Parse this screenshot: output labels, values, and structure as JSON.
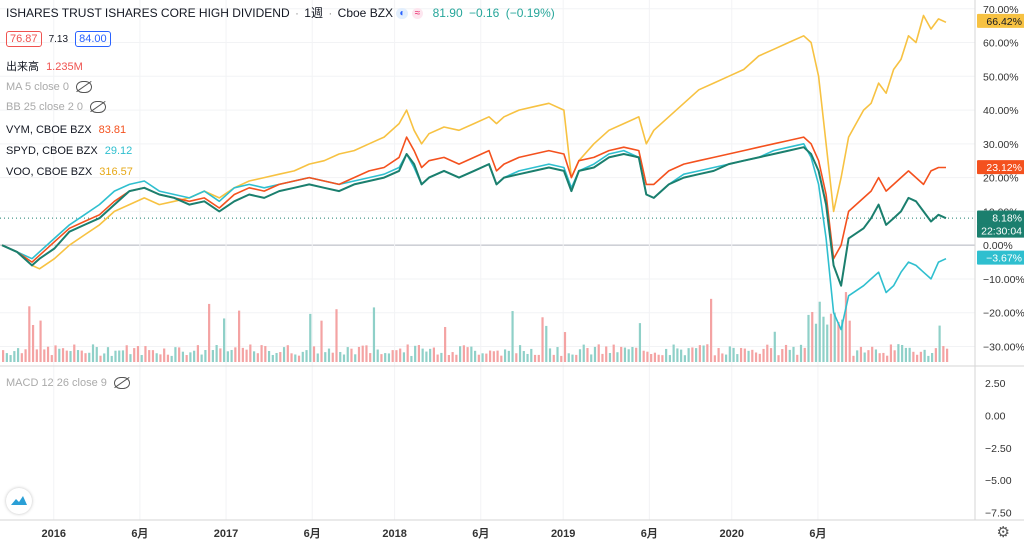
{
  "header": {
    "title": "ISHARES TRUST ISHARES CORE HIGH DIVIDEND",
    "sep": "·",
    "interval": "1週",
    "exchange": "Cboe BZX",
    "price": "81.90",
    "change": "−0.16",
    "change_pct": "(−0.19%)",
    "bid": "76.87",
    "spread": "7.13",
    "ask": "84.00"
  },
  "indicators": {
    "volume_label": "出来高",
    "volume_value": "1.235M",
    "ma": "MA 5 close 0",
    "bb": "BB 25 close 2 0",
    "macd": "MACD 12 26 close 9"
  },
  "series_legend": [
    {
      "label": "VYM, CBOE BZX",
      "value": "83.81"
    },
    {
      "label": "SPYD, CBOE BZX",
      "value": "29.12"
    },
    {
      "label": "VOO, CBOE BZX",
      "value": "316.57"
    }
  ],
  "badges": {
    "voo": "66.42%",
    "vym": "23.12%",
    "main": "8.18%",
    "time": "22:30:04",
    "spyd": "−3.67%"
  },
  "chart_data": {
    "type": "line",
    "x_ticks": [
      "2016",
      "6月",
      "2017",
      "6月",
      "2018",
      "6月",
      "2019",
      "6月",
      "2020",
      "6月"
    ],
    "y_ticks": [
      "70.00%",
      "60.00%",
      "50.00%",
      "40.00%",
      "30.00%",
      "20.00%",
      "10.00%",
      "0.00%",
      "−10.00%",
      "−20.00%",
      "−30.00%"
    ],
    "ylim": [
      -34,
      72
    ],
    "macd_ticks": [
      "2.50",
      "0.00",
      "−2.50",
      "−5.00",
      "−7.50"
    ],
    "colors": {
      "main": "#1b7f6e",
      "vym": "#f4511e",
      "spyd": "#2fbfcf",
      "voo": "#f7c242",
      "vol_up": "#8fd0c8",
      "vol_down": "#f4a3a3"
    },
    "series": [
      {
        "name": "ISHARES TRUST ISHARES CORE HIGH DIVIDEND",
        "color_key": "main",
        "points": [
          [
            0,
            0
          ],
          [
            4,
            -2
          ],
          [
            8,
            -6
          ],
          [
            10,
            -4
          ],
          [
            14,
            -1
          ],
          [
            18,
            4
          ],
          [
            22,
            6
          ],
          [
            26,
            8
          ],
          [
            30,
            12
          ],
          [
            34,
            16
          ],
          [
            38,
            17
          ],
          [
            42,
            15
          ],
          [
            46,
            14
          ],
          [
            50,
            12
          ],
          [
            54,
            13
          ],
          [
            58,
            10
          ],
          [
            62,
            13
          ],
          [
            66,
            15
          ],
          [
            70,
            14
          ],
          [
            74,
            16
          ],
          [
            78,
            17
          ],
          [
            82,
            18
          ],
          [
            86,
            17
          ],
          [
            90,
            16
          ],
          [
            94,
            18
          ],
          [
            98,
            19
          ],
          [
            102,
            20
          ],
          [
            106,
            22
          ],
          [
            108,
            27
          ],
          [
            110,
            24
          ],
          [
            112,
            18
          ],
          [
            114,
            20
          ],
          [
            118,
            22
          ],
          [
            122,
            20
          ],
          [
            126,
            22
          ],
          [
            130,
            24
          ],
          [
            132,
            18
          ],
          [
            134,
            20
          ],
          [
            138,
            21
          ],
          [
            142,
            22
          ],
          [
            146,
            23
          ],
          [
            150,
            22
          ],
          [
            152,
            16
          ],
          [
            154,
            22
          ],
          [
            158,
            23
          ],
          [
            162,
            26
          ],
          [
            166,
            27
          ],
          [
            170,
            26
          ],
          [
            172,
            15
          ],
          [
            174,
            14
          ],
          [
            178,
            18
          ],
          [
            182,
            20
          ],
          [
            186,
            21
          ],
          [
            190,
            22
          ],
          [
            194,
            24
          ],
          [
            198,
            25
          ],
          [
            202,
            26
          ],
          [
            206,
            27
          ],
          [
            210,
            28
          ],
          [
            214,
            29
          ],
          [
            216,
            27
          ],
          [
            218,
            22
          ],
          [
            220,
            12
          ],
          [
            222,
            -6
          ],
          [
            224,
            -12
          ],
          [
            226,
            2
          ],
          [
            230,
            5
          ],
          [
            232,
            8
          ],
          [
            234,
            12
          ],
          [
            236,
            6
          ],
          [
            238,
            8
          ],
          [
            240,
            10
          ],
          [
            242,
            14
          ],
          [
            244,
            13
          ],
          [
            246,
            10
          ],
          [
            248,
            7
          ],
          [
            250,
            9
          ],
          [
            252,
            8
          ]
        ]
      },
      {
        "name": "VYM, CBOE BZX",
        "color_key": "vym",
        "points": [
          [
            0,
            0
          ],
          [
            4,
            -2
          ],
          [
            8,
            -5
          ],
          [
            10,
            -3
          ],
          [
            14,
            1
          ],
          [
            18,
            5
          ],
          [
            22,
            7
          ],
          [
            26,
            9
          ],
          [
            30,
            13
          ],
          [
            34,
            16
          ],
          [
            38,
            17
          ],
          [
            42,
            15
          ],
          [
            46,
            14
          ],
          [
            50,
            13
          ],
          [
            54,
            14
          ],
          [
            58,
            11
          ],
          [
            62,
            15
          ],
          [
            66,
            17
          ],
          [
            70,
            16
          ],
          [
            74,
            18
          ],
          [
            78,
            19
          ],
          [
            82,
            20
          ],
          [
            86,
            19
          ],
          [
            90,
            18
          ],
          [
            94,
            20
          ],
          [
            98,
            22
          ],
          [
            102,
            23
          ],
          [
            106,
            26
          ],
          [
            108,
            32
          ],
          [
            110,
            28
          ],
          [
            112,
            23
          ],
          [
            114,
            25
          ],
          [
            118,
            26
          ],
          [
            122,
            24
          ],
          [
            126,
            26
          ],
          [
            130,
            28
          ],
          [
            132,
            22
          ],
          [
            134,
            24
          ],
          [
            138,
            26
          ],
          [
            142,
            27
          ],
          [
            146,
            28
          ],
          [
            150,
            27
          ],
          [
            152,
            20
          ],
          [
            154,
            25
          ],
          [
            158,
            26
          ],
          [
            162,
            28
          ],
          [
            166,
            29
          ],
          [
            170,
            28
          ],
          [
            172,
            18
          ],
          [
            174,
            18
          ],
          [
            178,
            22
          ],
          [
            182,
            24
          ],
          [
            186,
            25
          ],
          [
            190,
            26
          ],
          [
            194,
            27
          ],
          [
            198,
            28
          ],
          [
            202,
            29
          ],
          [
            206,
            30
          ],
          [
            210,
            31
          ],
          [
            214,
            32
          ],
          [
            216,
            30
          ],
          [
            218,
            25
          ],
          [
            220,
            15
          ],
          [
            222,
            -4
          ],
          [
            224,
            0
          ],
          [
            226,
            10
          ],
          [
            230,
            14
          ],
          [
            232,
            16
          ],
          [
            234,
            20
          ],
          [
            236,
            16
          ],
          [
            238,
            18
          ],
          [
            240,
            20
          ],
          [
            242,
            22
          ],
          [
            244,
            20
          ],
          [
            246,
            18
          ],
          [
            248,
            22
          ],
          [
            250,
            23
          ],
          [
            252,
            23
          ]
        ]
      },
      {
        "name": "SPYD, CBOE BZX",
        "color_key": "spyd",
        "points": [
          [
            0,
            0
          ],
          [
            4,
            -2
          ],
          [
            8,
            -4
          ],
          [
            10,
            -2
          ],
          [
            14,
            2
          ],
          [
            18,
            6
          ],
          [
            22,
            9
          ],
          [
            26,
            12
          ],
          [
            30,
            16
          ],
          [
            34,
            18
          ],
          [
            38,
            19
          ],
          [
            42,
            16
          ],
          [
            46,
            15
          ],
          [
            50,
            14
          ],
          [
            54,
            16
          ],
          [
            58,
            13
          ],
          [
            62,
            17
          ],
          [
            66,
            18
          ],
          [
            70,
            17
          ],
          [
            74,
            18
          ],
          [
            78,
            19
          ],
          [
            82,
            20
          ],
          [
            86,
            19
          ],
          [
            90,
            18
          ],
          [
            94,
            19
          ],
          [
            98,
            20
          ],
          [
            102,
            21
          ],
          [
            106,
            23
          ],
          [
            108,
            27
          ],
          [
            110,
            23
          ],
          [
            112,
            18
          ],
          [
            114,
            20
          ],
          [
            118,
            22
          ],
          [
            122,
            20
          ],
          [
            126,
            22
          ],
          [
            130,
            24
          ],
          [
            132,
            18
          ],
          [
            134,
            20
          ],
          [
            138,
            22
          ],
          [
            142,
            23
          ],
          [
            146,
            24
          ],
          [
            150,
            23
          ],
          [
            152,
            17
          ],
          [
            154,
            22
          ],
          [
            158,
            24
          ],
          [
            162,
            27
          ],
          [
            166,
            28
          ],
          [
            170,
            26
          ],
          [
            172,
            15
          ],
          [
            174,
            14
          ],
          [
            178,
            18
          ],
          [
            182,
            21
          ],
          [
            186,
            22
          ],
          [
            190,
            23
          ],
          [
            194,
            24
          ],
          [
            198,
            25
          ],
          [
            202,
            26
          ],
          [
            206,
            28
          ],
          [
            210,
            29
          ],
          [
            214,
            30
          ],
          [
            216,
            26
          ],
          [
            218,
            18
          ],
          [
            220,
            2
          ],
          [
            222,
            -20
          ],
          [
            224,
            -25
          ],
          [
            226,
            -15
          ],
          [
            230,
            -12
          ],
          [
            232,
            -10
          ],
          [
            234,
            -8
          ],
          [
            236,
            -14
          ],
          [
            238,
            -12
          ],
          [
            240,
            -8
          ],
          [
            242,
            -5
          ],
          [
            244,
            -6
          ],
          [
            246,
            -8
          ],
          [
            248,
            -10
          ],
          [
            250,
            -5
          ],
          [
            252,
            -4
          ]
        ]
      },
      {
        "name": "VOO, CBOE BZX",
        "color_key": "voo",
        "points": [
          [
            0,
            0
          ],
          [
            4,
            -2
          ],
          [
            8,
            -6
          ],
          [
            10,
            -7
          ],
          [
            14,
            -4
          ],
          [
            18,
            0
          ],
          [
            22,
            3
          ],
          [
            26,
            6
          ],
          [
            30,
            10
          ],
          [
            34,
            12
          ],
          [
            38,
            14
          ],
          [
            42,
            12
          ],
          [
            46,
            13
          ],
          [
            50,
            14
          ],
          [
            54,
            16
          ],
          [
            58,
            14
          ],
          [
            62,
            17
          ],
          [
            66,
            19
          ],
          [
            70,
            20
          ],
          [
            74,
            21
          ],
          [
            78,
            22
          ],
          [
            82,
            24
          ],
          [
            86,
            25
          ],
          [
            90,
            27
          ],
          [
            94,
            28
          ],
          [
            98,
            30
          ],
          [
            102,
            32
          ],
          [
            106,
            36
          ],
          [
            108,
            40
          ],
          [
            110,
            34
          ],
          [
            112,
            30
          ],
          [
            114,
            33
          ],
          [
            118,
            35
          ],
          [
            122,
            34
          ],
          [
            126,
            36
          ],
          [
            130,
            38
          ],
          [
            132,
            36
          ],
          [
            134,
            38
          ],
          [
            138,
            40
          ],
          [
            142,
            41
          ],
          [
            146,
            42
          ],
          [
            150,
            40
          ],
          [
            152,
            20
          ],
          [
            154,
            25
          ],
          [
            158,
            30
          ],
          [
            162,
            34
          ],
          [
            166,
            36
          ],
          [
            170,
            38
          ],
          [
            172,
            30
          ],
          [
            174,
            34
          ],
          [
            178,
            38
          ],
          [
            182,
            42
          ],
          [
            186,
            46
          ],
          [
            190,
            48
          ],
          [
            194,
            50
          ],
          [
            198,
            52
          ],
          [
            202,
            56
          ],
          [
            206,
            58
          ],
          [
            210,
            60
          ],
          [
            214,
            62
          ],
          [
            216,
            60
          ],
          [
            218,
            50
          ],
          [
            220,
            30
          ],
          [
            222,
            10
          ],
          [
            224,
            20
          ],
          [
            226,
            32
          ],
          [
            230,
            40
          ],
          [
            232,
            42
          ],
          [
            234,
            48
          ],
          [
            236,
            45
          ],
          [
            238,
            52
          ],
          [
            240,
            55
          ],
          [
            242,
            62
          ],
          [
            244,
            60
          ],
          [
            246,
            68
          ],
          [
            248,
            64
          ],
          [
            250,
            67
          ],
          [
            252,
            66
          ]
        ]
      }
    ]
  }
}
